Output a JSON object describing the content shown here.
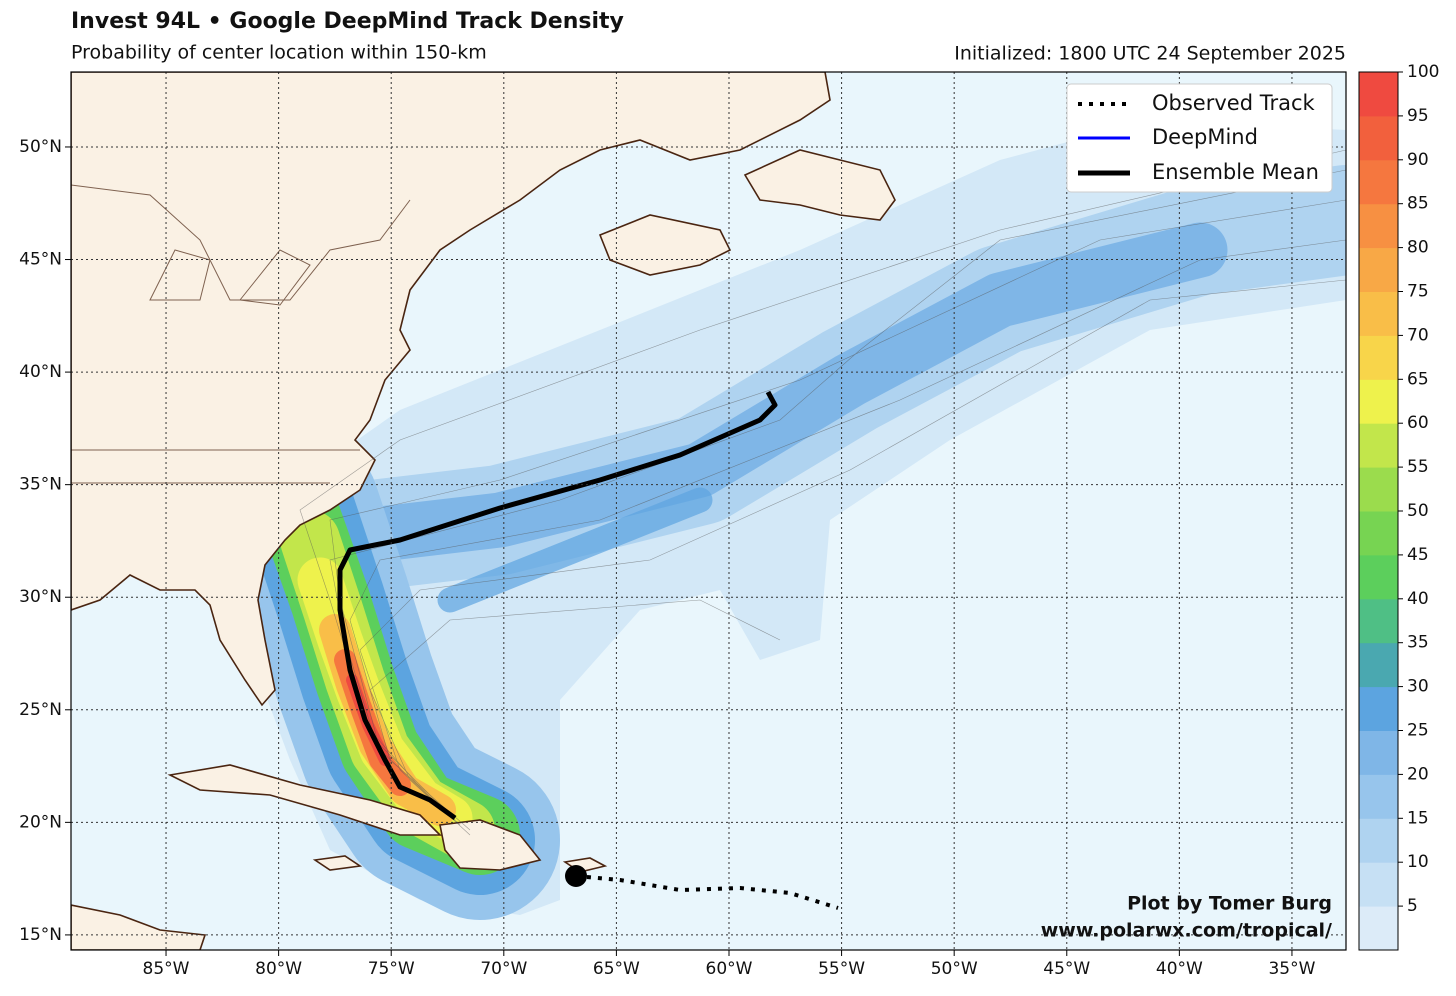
{
  "header": {
    "title": "Invest 94L • Google DeepMind Track Density",
    "subtitle": "Probability of center location within 150-km",
    "initialized": "Initialized: 1800 UTC 24 September 2025"
  },
  "map": {
    "lonlim": [
      -89.22,
      -32.6
    ],
    "latlim": [
      14.33,
      53.33
    ],
    "lon_ticks": [
      {
        "value": -85,
        "label": "85°W"
      },
      {
        "value": -80,
        "label": "80°W"
      },
      {
        "value": -75,
        "label": "75°W"
      },
      {
        "value": -70,
        "label": "70°W"
      },
      {
        "value": -65,
        "label": "65°W"
      },
      {
        "value": -60,
        "label": "60°W"
      },
      {
        "value": -55,
        "label": "55°W"
      },
      {
        "value": -50,
        "label": "50°W"
      },
      {
        "value": -45,
        "label": "45°W"
      },
      {
        "value": -40,
        "label": "40°W"
      },
      {
        "value": -35,
        "label": "35°W"
      }
    ],
    "lat_ticks": [
      {
        "value": 15,
        "label": "15°N"
      },
      {
        "value": 20,
        "label": "20°N"
      },
      {
        "value": 25,
        "label": "25°N"
      },
      {
        "value": 30,
        "label": "30°N"
      },
      {
        "value": 35,
        "label": "35°N"
      },
      {
        "value": 40,
        "label": "40°N"
      },
      {
        "value": 45,
        "label": "45°N"
      },
      {
        "value": 50,
        "label": "50°N"
      }
    ],
    "grid": true
  },
  "legend": [
    {
      "name": "Observed Track",
      "color": "#000000"
    },
    {
      "name": "DeepMind",
      "color": "#0000ff"
    },
    {
      "name": "Ensemble Mean",
      "color": "#000000"
    }
  ],
  "colorbar": {
    "lim": [
      0,
      100
    ],
    "ticks": [
      5,
      10,
      15,
      20,
      25,
      30,
      35,
      40,
      45,
      50,
      55,
      60,
      65,
      70,
      75,
      80,
      85,
      90,
      95,
      100
    ],
    "colors": [
      "#dcebf8",
      "#c6e0f4",
      "#afd3f0",
      "#97c5ec",
      "#7fb6e7",
      "#5ca4e0",
      "#4aa8b0",
      "#4fbf85",
      "#5ccf5c",
      "#77d452",
      "#9bdc4d",
      "#c2e64b",
      "#eef24c",
      "#f8d54a",
      "#f9be48",
      "#f8a846",
      "#f79042",
      "#f5773f",
      "#f2603d",
      "#ef4a40"
    ]
  },
  "credit": [
    "Plot by Tomer Burg",
    "www.polarwx.com/tropical/"
  ]
}
